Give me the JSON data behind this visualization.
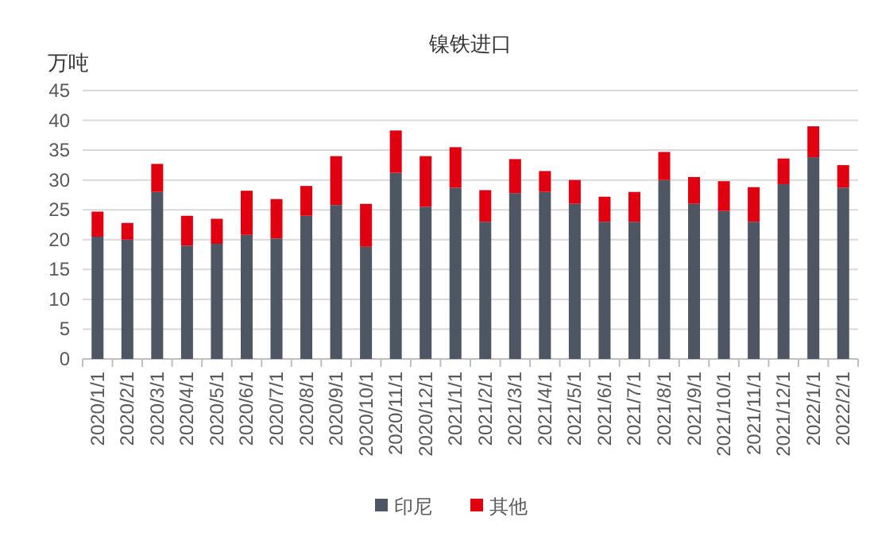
{
  "chart_data": {
    "type": "bar",
    "title": "镍铁进口",
    "ylabel": "万吨",
    "stacked": true,
    "grid": "y",
    "legend": "bottom",
    "categories": [
      "2020/1/1",
      "2020/2/1",
      "2020/3/1",
      "2020/4/1",
      "2020/5/1",
      "2020/6/1",
      "2020/7/1",
      "2020/8/1",
      "2020/9/1",
      "2020/10/1",
      "2020/11/1",
      "2020/12/1",
      "2021/1/1",
      "2021/2/1",
      "2021/3/1",
      "2021/4/1",
      "2021/5/1",
      "2021/6/1",
      "2021/7/1",
      "2021/8/1",
      "2021/9/1",
      "2021/10/1",
      "2021/11/1",
      "2021/12/1",
      "2022/1/1",
      "2022/2/1"
    ],
    "series": [
      {
        "name": "印尼",
        "color": "#4d5662",
        "values": [
          20.5,
          20,
          28,
          19,
          19.3,
          20.8,
          20.2,
          24,
          25.8,
          18.8,
          31.2,
          25.5,
          28.7,
          23,
          27.8,
          28,
          26,
          23,
          23,
          30,
          26,
          24.8,
          23,
          29.3,
          33.8,
          28.7
        ]
      },
      {
        "name": "其他",
        "color": "#e0000f",
        "values": [
          4.2,
          2.8,
          4.7,
          5,
          4.2,
          7.4,
          6.6,
          5,
          8.2,
          7.2,
          7.1,
          8.5,
          6.8,
          5.3,
          5.7,
          3.5,
          4,
          4.2,
          5,
          4.7,
          4.5,
          5,
          5.8,
          4.3,
          5.2,
          3.8
        ]
      }
    ],
    "ylim": [
      0,
      45
    ],
    "yticks": [
      0,
      5,
      10,
      15,
      20,
      25,
      30,
      35,
      40,
      45
    ]
  }
}
